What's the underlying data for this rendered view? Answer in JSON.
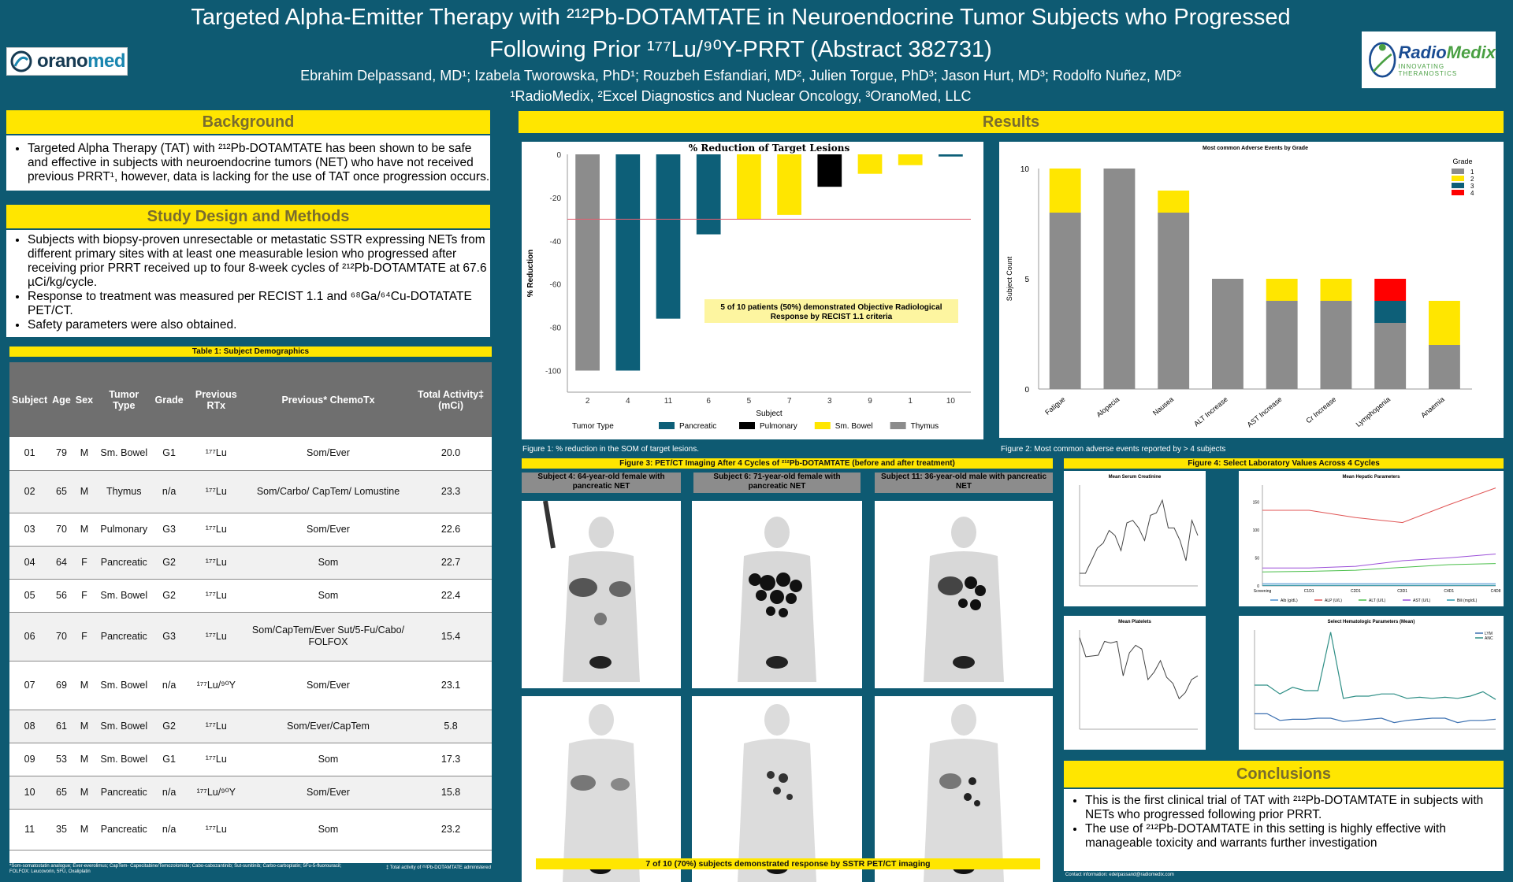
{
  "header": {
    "title_line1": "Targeted Alpha-Emitter Therapy with ²¹²Pb-DOTAMTATE in Neuroendocrine Tumor Subjects who Progressed",
    "title_line2": "Following Prior ¹⁷⁷Lu/⁹⁰Y-PRRT (Abstract 382731)",
    "authors": "Ebrahim Delpassand, MD¹; Izabela Tworowska, PhD¹; Rouzbeh Esfandiari, MD²,  Julien Torgue, PhD³;  Jason Hurt, MD³; Rodolfo Nuñez, MD²",
    "affiliations": "¹RadioMedix, ²Excel Diagnostics and Nuclear Oncology, ³OranoMed, LLC"
  },
  "logos": {
    "left_text_a": "orano",
    "left_text_b": "med",
    "right_text_a": "Radio",
    "right_text_b": "Medix",
    "right_tagline": "INNOVATING THERANOSTICS"
  },
  "background": {
    "heading": "Background",
    "bullets": [
      "Targeted Alpha Therapy (TAT) with ²¹²Pb-DOTAMTATE has been shown to be safe and effective in subjects with neuroendocrine tumors (NET) who have not received previous PRRT¹, however, data is lacking for the use of TAT once progression occurs."
    ]
  },
  "methods": {
    "heading": "Study Design and Methods",
    "bullets": [
      "Subjects with biopsy-proven unresectable or metastatic SSTR expressing NETs from different primary sites with at least one measurable lesion who progressed after receiving prior PRRT received up to four 8-week cycles of ²¹²Pb-DOTAMTATE at 67.6 µCi/kg/cycle.",
      "Response to treatment was measured per RECIST 1.1 and  ⁶⁸Ga/⁶⁴Cu-DOTATATE PET/CT.",
      "Safety parameters were also obtained."
    ]
  },
  "table1": {
    "title": "Table 1: Subject Demographics",
    "headers": [
      "Subject",
      "Age",
      "Sex",
      "Tumor Type",
      "Grade",
      "Previous RTx",
      "Previous* ChemoTx",
      "Total Activity‡ (mCi)"
    ],
    "rows": [
      [
        "01",
        "79",
        "M",
        "Sm. Bowel",
        "G1",
        "¹⁷⁷Lu",
        "Som/Ever",
        "20.0"
      ],
      [
        "02",
        "65",
        "M",
        "Thymus",
        "n/a",
        "¹⁷⁷Lu",
        "Som/Carbo/ CapTem/ Lomustine",
        "23.3"
      ],
      [
        "03",
        "70",
        "M",
        "Pulmonary",
        "G3",
        "¹⁷⁷Lu",
        "Som/Ever",
        "22.6"
      ],
      [
        "04",
        "64",
        "F",
        "Pancreatic",
        "G2",
        "¹⁷⁷Lu",
        "Som",
        "22.7"
      ],
      [
        "05",
        "56",
        "F",
        "Sm. Bowel",
        "G2",
        "¹⁷⁷Lu",
        "Som",
        "22.4"
      ],
      [
        "06",
        "70",
        "F",
        "Pancreatic",
        "G3",
        "¹⁷⁷Lu",
        "Som/CapTem/Ever Sut/5-Fu/Cabo/ FOLFOX",
        "15.4"
      ],
      [
        "07",
        "69",
        "M",
        "Sm. Bowel",
        "n/a",
        "¹⁷⁷Lu/⁹⁰Y",
        "Som/Ever",
        "23.1"
      ],
      [
        "08",
        "61",
        "M",
        "Sm. Bowel",
        "G2",
        "¹⁷⁷Lu",
        "Som/Ever/CapTem",
        "5.8"
      ],
      [
        "09",
        "53",
        "M",
        "Sm. Bowel",
        "G1",
        "¹⁷⁷Lu",
        "Som",
        "17.3"
      ],
      [
        "10",
        "65",
        "M",
        "Pancreatic",
        "n/a",
        "¹⁷⁷Lu/⁹⁰Y",
        "Som/Ever",
        "15.8"
      ],
      [
        "11",
        "35",
        "M",
        "Pancreatic",
        "n/a",
        "¹⁷⁷Lu",
        "Som",
        "23.2"
      ]
    ],
    "footnote_left": "*Som-somatostatin analogue;  Ever-everolimus; CapTem- Capecitabine/Temozolomide; Cabo-cabozantinib; Sut-sunitinib; Carbo-carboplatin; 5Fu-5-fluorouracil; FOLFOX: Leucovorin, 5FU, Oxaliplatin",
    "footnote_right": "‡ Total activity of ²¹²Pb-DOTAMTATE administered"
  },
  "results": {
    "heading": "Results"
  },
  "fig1": {
    "caption": "Figure 1: % reduction in the SOM of target lesions.",
    "annotation_line1": "5 of 10 patients (50%) demonstrated Objective Radiological",
    "annotation_line2": "Response by RECIST 1.1 criteria"
  },
  "fig2": {
    "caption": "Figure 2:  Most common adverse events reported by > 4 subjects"
  },
  "fig3": {
    "title": "Figure 3: PET/CT Imaging After 4 Cycles of ²¹²Pb-DOTAMTATE (before and after treatment)",
    "subjects": [
      "Subject 4: 64-year-old female with pancreatic NET",
      "Subject 6: 71-year-old female with pancreatic NET",
      "Subject 11: 36-year-old male with pancreatic NET"
    ],
    "annotation": "7 of 10 (70%) subjects demonstrated response by SSTR PET/CT imaging"
  },
  "fig4": {
    "title": "Figure 4: Select Laboratory Values Across 4 Cycles"
  },
  "conclusions": {
    "heading": "Conclusions",
    "bullets": [
      "This is the first clinical trial of TAT with ²¹²Pb-DOTAMTATE in subjects with NETs who progressed following prior PRRT.",
      "The use of ²¹²Pb-DOTAMTATE in this setting is highly effective with manageable toxicity and warrants further investigation"
    ],
    "contact": "Contact information: edelpassand@radiomedix.com"
  },
  "chart_data": [
    {
      "type": "bar",
      "title": "% Reduction of Target Lesions",
      "xlabel": "Subject",
      "ylabel": "% Reduction",
      "ylim": [
        -110,
        0
      ],
      "yticks": [
        0,
        -20,
        -40,
        -60,
        -80,
        -100
      ],
      "threshold": -30,
      "categories": [
        "2",
        "4",
        "11",
        "6",
        "5",
        "7",
        "3",
        "9",
        "1",
        "10"
      ],
      "values": [
        -100,
        -100,
        -76,
        -37,
        -30,
        -28,
        -15,
        -9,
        -5,
        -1
      ],
      "tumor_type": [
        "Thymus",
        "Pancreatic",
        "Pancreatic",
        "Pancreatic",
        "Sm. Bowel",
        "Sm. Bowel",
        "Pulmonary",
        "Sm. Bowel",
        "Sm. Bowel",
        "Pancreatic"
      ],
      "legend_title": "Tumor Type",
      "legend": [
        {
          "name": "Pancreatic",
          "color": "#0d5f78"
        },
        {
          "name": "Pulmonary",
          "color": "#000000"
        },
        {
          "name": "Sm. Bowel",
          "color": "#ffe600"
        },
        {
          "name": "Thymus",
          "color": "#8c8c8c"
        }
      ]
    },
    {
      "type": "bar",
      "stacked": true,
      "title": "Most common Adverse Events by Grade",
      "ylabel": "Subject Count",
      "ylim": [
        0,
        10
      ],
      "yticks": [
        0,
        5,
        10
      ],
      "categories": [
        "Fatigue",
        "Alopecia",
        "Nausea",
        "ALT Increase",
        "AST Increase",
        "Cr Increase",
        "Lymphopenia",
        "Anaemia"
      ],
      "legend_title": "Grade",
      "series": [
        {
          "name": "1",
          "color": "#8c8c8c",
          "values": [
            8,
            10,
            8,
            5,
            4,
            4,
            3,
            2
          ]
        },
        {
          "name": "2",
          "color": "#ffe600",
          "values": [
            2,
            0,
            1,
            0,
            1,
            1,
            0,
            2
          ]
        },
        {
          "name": "3",
          "color": "#0d5f78",
          "values": [
            0,
            0,
            0,
            0,
            0,
            0,
            1,
            0
          ]
        },
        {
          "name": "4",
          "color": "#ff0000",
          "values": [
            0,
            0,
            0,
            0,
            0,
            0,
            1,
            0
          ]
        }
      ]
    },
    {
      "type": "line",
      "title": "Mean Serum Creatinine",
      "ylim": [
        0.9,
        1.3
      ],
      "values": [
        0.95,
        0.95,
        1.0,
        1.05,
        1.07,
        1.12,
        1.1,
        1.04,
        1.15,
        1.16,
        1.13,
        1.08,
        1.18,
        1.19,
        1.24,
        1.13,
        1.13,
        1.08,
        1.0,
        1.16,
        1.1
      ],
      "color": "#444444"
    },
    {
      "type": "line",
      "title": "Mean Hepatic Parameters",
      "ylim": [
        0,
        180
      ],
      "yticks": [
        0,
        50,
        100,
        150
      ],
      "categories": [
        "Screening",
        "C1D1",
        "C2D1",
        "C3D1",
        "C4D1",
        "C4D8"
      ],
      "series": [
        {
          "name": "Alb (g/dL)",
          "color": "#4a90d0",
          "values": [
            4,
            4,
            4,
            4,
            4,
            4
          ]
        },
        {
          "name": "ALP (U/L)",
          "color": "#e05555",
          "values": [
            135,
            135,
            122,
            113,
            145,
            175
          ]
        },
        {
          "name": "ALT (U/L)",
          "color": "#4bbf4b",
          "values": [
            25,
            26,
            28,
            33,
            38,
            40
          ]
        },
        {
          "name": "AST (U/L)",
          "color": "#9b4fd8",
          "values": [
            32,
            32,
            35,
            45,
            50,
            57
          ]
        },
        {
          "name": "Bili (mg/dL)",
          "color": "#2b9bb0",
          "values": [
            1,
            1,
            1,
            1,
            1,
            1
          ]
        }
      ]
    },
    {
      "type": "line",
      "title": "Mean Platelets",
      "ylim": [
        110,
        240
      ],
      "values": [
        230,
        205,
        206,
        207,
        225,
        223,
        225,
        180,
        210,
        220,
        215,
        175,
        185,
        200,
        178,
        170,
        150,
        158,
        175,
        180
      ],
      "color": "#444444"
    },
    {
      "type": "line",
      "title": "Select Hematologic Parameters (Mean)",
      "ylim": [
        0,
        9
      ],
      "series": [
        {
          "name": "LYM",
          "color": "#3a6fb0",
          "values": [
            1.4,
            1.4,
            0.8,
            0.9,
            0.9,
            1.0,
            1.0,
            0.7,
            0.8,
            0.9,
            1.0,
            0.6,
            0.8,
            0.9,
            1.0,
            1.0,
            0.6,
            0.8,
            0.8,
            0.9
          ]
        },
        {
          "name": "ANC",
          "color": "#2f8f86",
          "values": [
            4.0,
            4.0,
            3.2,
            3.8,
            3.5,
            3.5,
            8.8,
            2.8,
            3.0,
            3.0,
            3.2,
            3.2,
            2.8,
            2.9,
            2.8,
            2.9,
            2.8,
            3.0,
            3.4,
            2.7
          ]
        }
      ]
    }
  ]
}
